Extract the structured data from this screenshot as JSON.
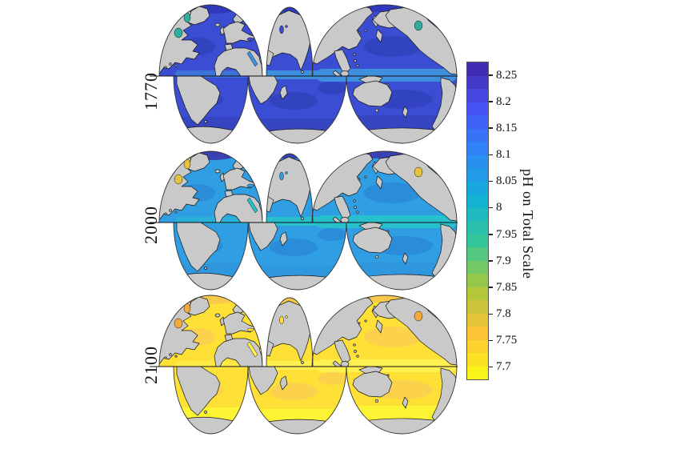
{
  "figure": {
    "background": "#ffffff",
    "land_color": "#c9c9c9",
    "coast_color": "#161616",
    "maps": [
      {
        "year": "1770",
        "ocean": "#3b4ed3",
        "deep": "#3242bd",
        "accent": "#3f8fdf",
        "arctic": "#2fae9d",
        "south": "#3646c2",
        "polar": "#3038bb"
      },
      {
        "year": "2000",
        "ocean": "#2f9ee3",
        "deep": "#2b89d7",
        "accent": "#27c0cd",
        "arctic": "#e4c23c",
        "south": "#2f97de",
        "polar": "#3a41b3"
      },
      {
        "year": "2100",
        "ocean": "#fee037",
        "deep": "#fccf52",
        "accent": "#fff052",
        "arctic": "#f5aa3d",
        "south": "#fdf434",
        "polar": "#f9c94b"
      }
    ],
    "colorbar": {
      "title": "pH on Total Scale",
      "tick_labels": [
        "8.25",
        "8.2",
        "8.15",
        "8.1",
        "8.05",
        "8",
        "7.95",
        "7.9",
        "7.85",
        "7.8",
        "7.75",
        "7.7"
      ],
      "vmin": 7.675,
      "vmax": 8.275,
      "bands": 24,
      "anchor_colors": [
        "#3E26A8",
        "#4852F4",
        "#2E87F7",
        "#12B1D6",
        "#37C897",
        "#ABC739",
        "#FEC338",
        "#F9FB15"
      ],
      "border_color": "#555555"
    }
  },
  "chart_data": {
    "type": "heatmap",
    "subtype": "interrupted-projection world maps of sea-surface pH, three time panels",
    "panels": [
      {
        "label": "1770",
        "approx_global_surface_pH": 8.17,
        "dominant_color": "#3b4ed3"
      },
      {
        "label": "2000",
        "approx_global_surface_pH": 8.05,
        "dominant_color": "#2f9ee3"
      },
      {
        "label": "2100",
        "approx_global_surface_pH": 7.75,
        "dominant_color": "#fee037"
      }
    ],
    "colorbar_label": "pH on Total Scale",
    "colorbar_ticks": [
      8.25,
      8.2,
      8.15,
      8.1,
      8.05,
      8,
      7.95,
      7.9,
      7.85,
      7.8,
      7.75,
      7.7
    ],
    "colorbar_range": [
      7.675,
      8.275
    ],
    "colormap": "parula (dark blue = high pH 8.25, yellow = low pH 7.7)",
    "legend_position": "right",
    "grid": false
  }
}
